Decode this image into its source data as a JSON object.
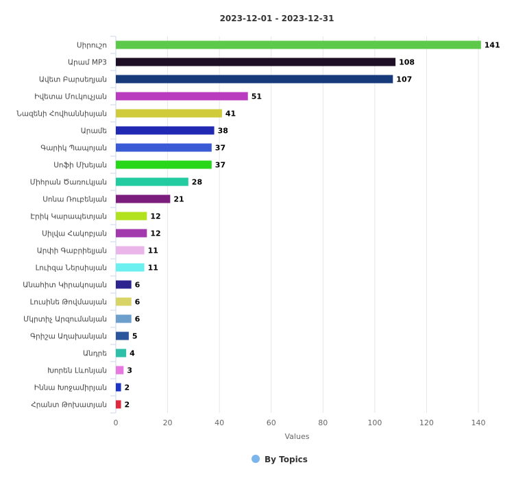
{
  "chart_data": {
    "type": "bar",
    "orientation": "horizontal",
    "title": "2023-12-01 - 2023-12-31",
    "xlabel": "Values",
    "ylabel": "",
    "xlim": [
      0,
      140
    ],
    "x_ticks": [
      0,
      20,
      40,
      60,
      80,
      100,
      120,
      140
    ],
    "grid": true,
    "legend_position": "bottom",
    "legend": [
      {
        "name": "By Topics",
        "color": "#7cb5ec"
      }
    ],
    "categories": [
      "Սիրուշո",
      "Արամ MP3",
      "Ավետ Բարսեղյան",
      "Իվետա Մուկուչյան",
      "Նազենի Հովհաննիսյան",
      "Արամե",
      "Գարիկ Պապոյան",
      "Սոֆի Մխեյան",
      "Միհրան Ծառուկյան",
      "Սոնա Ռուբենյան",
      "Էրիկ Կարապետյան",
      "Սիլվա Հակոբյան",
      "Արփի Գաբրիելյան",
      "Լուիզա Ներսիսյան",
      "Անահիտ Կիրակոսյան",
      "Լուսինե Թովմասյան",
      "Մկրտիչ Արզումանյան",
      "Գրիշա Աղախանյան",
      "Անդրե",
      "Խորեն Լևոնյան",
      "Իննա Խոջամիրյան",
      "Հրանտ Թոխատյան"
    ],
    "values": [
      141,
      108,
      107,
      51,
      41,
      38,
      37,
      37,
      28,
      21,
      12,
      12,
      11,
      11,
      6,
      6,
      6,
      5,
      4,
      3,
      2,
      2
    ],
    "colors": [
      "#5cc94a",
      "#1f0f26",
      "#173a7a",
      "#b93cbf",
      "#cfcb3a",
      "#2129b2",
      "#3b5bd6",
      "#28d61a",
      "#22cca0",
      "#7b1d7d",
      "#b2e11e",
      "#a23aad",
      "#eab6ea",
      "#6bf0ef",
      "#2e2490",
      "#d9d466",
      "#6d9fcd",
      "#2b569c",
      "#2ebfa8",
      "#e67ae0",
      "#1c35c7",
      "#e0283c"
    ]
  }
}
